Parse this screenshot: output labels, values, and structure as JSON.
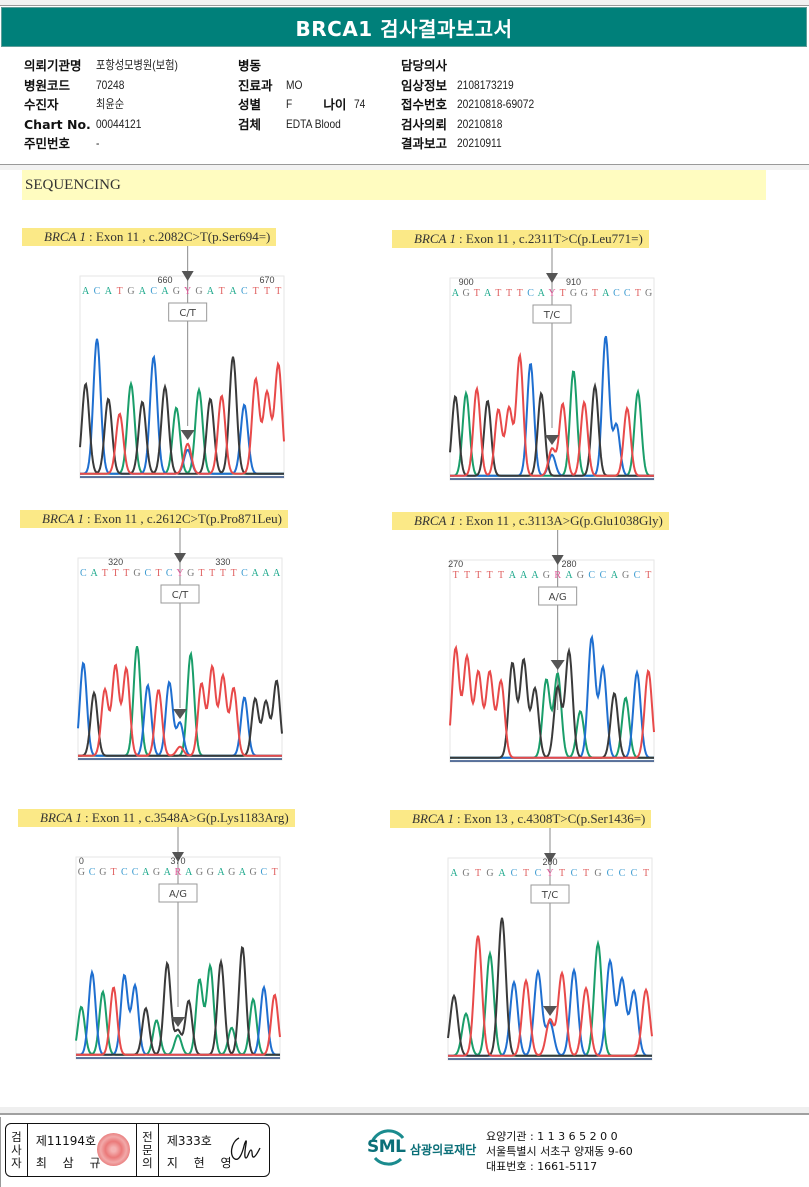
{
  "report": {
    "title": "BRCA1 검사결과보고서",
    "section_title": "SEQUENCING"
  },
  "patient_info": {
    "col1": [
      {
        "label": "의뢰기관명",
        "value": "포항성모병원(보험)"
      },
      {
        "label": "병원코드",
        "value": "70248"
      },
      {
        "label": "수진자",
        "value": "최윤순"
      },
      {
        "label": "Chart No.",
        "value": "00044121"
      },
      {
        "label": "주민번호",
        "value": "-"
      }
    ],
    "col2": [
      {
        "label": "병동",
        "value": ""
      },
      {
        "label": "진료과",
        "value": "MO"
      },
      {
        "label": "성별",
        "value": "F",
        "extra_label": "나이",
        "extra_value": "74"
      },
      {
        "label": "검체",
        "value": "EDTA Blood"
      }
    ],
    "col3": [
      {
        "label": "담당의사",
        "value": ""
      },
      {
        "label": "임상정보",
        "value": "2108173219"
      },
      {
        "label": "접수번호",
        "value": "20210818-69072"
      },
      {
        "label": "검사의뢰",
        "value": "20210818"
      },
      {
        "label": "결과보고",
        "value": "20210911"
      }
    ]
  },
  "variants": [
    {
      "gene": "BRCA 1",
      "desc": ": Exon 11 , c.2082C>T(p.Ser694=)",
      "call": "C/T",
      "pos_labels": [
        {
          "text": "660",
          "index": 7
        },
        {
          "text": "670",
          "index": 16
        }
      ],
      "sequence": "ACATGACAGYGATACTTT",
      "variant_index": 9,
      "peaks": [
        [
          "G",
          0.6
        ],
        [
          "C",
          0.9
        ],
        [
          "G",
          0.5
        ],
        [
          "T",
          0.4
        ],
        [
          "A",
          0.6
        ],
        [
          "G",
          0.48
        ],
        [
          "C",
          0.78
        ],
        [
          "G",
          0.58
        ],
        [
          "A",
          0.44
        ],
        [
          "T",
          0.2
        ],
        [
          "A",
          0.56
        ],
        [
          "G",
          0.5
        ],
        [
          "T",
          0.52
        ],
        [
          "G",
          0.78
        ],
        [
          "C",
          0.46
        ],
        [
          "T",
          0.63
        ],
        [
          "T",
          0.54
        ],
        [
          "T",
          0.73
        ]
      ],
      "minor": {
        "base": "C",
        "height": 0.16
      }
    },
    {
      "gene": "BRCA 1",
      "desc": ": Exon 11 , c.2311T>C(p.Leu771=)",
      "call": "T/C",
      "pos_labels": [
        {
          "text": "900",
          "index": 1
        },
        {
          "text": "910",
          "index": 11
        }
      ],
      "sequence": "AGTATTTCAYTGGTACCTG",
      "variant_index": 9,
      "peaks": [
        [
          "G",
          0.53
        ],
        [
          "A",
          0.55
        ],
        [
          "T",
          0.58
        ],
        [
          "G",
          0.5
        ],
        [
          "T",
          0.44
        ],
        [
          "T",
          0.45
        ],
        [
          "T",
          0.8
        ],
        [
          "C",
          0.75
        ],
        [
          "G",
          0.55
        ],
        [
          "T",
          0.18
        ],
        [
          "T",
          0.48
        ],
        [
          "A",
          0.7
        ],
        [
          "T",
          0.49
        ],
        [
          "G",
          0.6
        ],
        [
          "C",
          0.93
        ],
        [
          "C",
          0.34
        ],
        [
          "T",
          0.45
        ],
        [
          "A",
          0.56
        ]
      ],
      "minor": {
        "base": "C",
        "height": 0.14
      }
    },
    {
      "gene": "BRCA 1",
      "desc": ": Exon 11 , c.2612C>T(p.Pro871Leu)",
      "call": "C/T",
      "pos_labels": [
        {
          "text": "320",
          "index": 3
        },
        {
          "text": "330",
          "index": 13
        }
      ],
      "sequence": "CATTTGCTCYGTTTTCAAA",
      "variant_index": 9,
      "peaks": [
        [
          "C",
          0.62
        ],
        [
          "G",
          0.42
        ],
        [
          "T",
          0.44
        ],
        [
          "T",
          0.6
        ],
        [
          "T",
          0.58
        ],
        [
          "A",
          0.73
        ],
        [
          "C",
          0.47
        ],
        [
          "T",
          0.44
        ],
        [
          "C",
          0.49
        ],
        [
          "C",
          0.22
        ],
        [
          "A",
          0.68
        ],
        [
          "T",
          0.48
        ],
        [
          "T",
          0.59
        ],
        [
          "T",
          0.53
        ],
        [
          "T",
          0.45
        ],
        [
          "C",
          0.39
        ],
        [
          "G",
          0.38
        ],
        [
          "G",
          0.36
        ],
        [
          "G",
          0.5
        ]
      ],
      "minor": {
        "base": "T",
        "height": 0.06
      }
    },
    {
      "gene": "BRCA 1",
      "desc": ": Exon 11 , c.3113A>G(p.Glu1038Gly)",
      "call": "A/G",
      "pos_labels": [
        {
          "text": "270",
          "index": 0
        },
        {
          "text": "280",
          "index": 10
        }
      ],
      "sequence": "TTTTTAAAGRAGCCAGCT",
      "variant_index": 9,
      "peaks": [
        [
          "T",
          0.73
        ],
        [
          "T",
          0.67
        ],
        [
          "T",
          0.57
        ],
        [
          "T",
          0.57
        ],
        [
          "T",
          0.51
        ],
        [
          "G",
          0.63
        ],
        [
          "G",
          0.65
        ],
        [
          "G",
          0.46
        ],
        [
          "A",
          0.52
        ],
        [
          "A",
          0.56
        ],
        [
          "G",
          0.71
        ],
        [
          "A",
          0.31
        ],
        [
          "C",
          0.8
        ],
        [
          "C",
          0.6
        ],
        [
          "G",
          0.43
        ],
        [
          "A",
          0.4
        ],
        [
          "C",
          0.57
        ],
        [
          "T",
          0.58
        ]
      ],
      "minor": {
        "base": "G",
        "height": 0.47
      }
    },
    {
      "gene": "BRCA 1",
      "desc": ": Exon 11 , c.3548A>G(p.Lys1183Arg)",
      "call": "A/G",
      "pos_labels": [
        {
          "text": "0",
          "index": 0
        },
        {
          "text": "370",
          "index": 9
        }
      ],
      "sequence": "GCGTCCAGARAGGAGAGCT",
      "variant_index": 9,
      "peaks": [
        [
          "A",
          0.32
        ],
        [
          "C",
          0.55
        ],
        [
          "A",
          0.42
        ],
        [
          "T",
          0.45
        ],
        [
          "C",
          0.53
        ],
        [
          "C",
          0.46
        ],
        [
          "G",
          0.31
        ],
        [
          "A",
          0.23
        ],
        [
          "G",
          0.61
        ],
        [
          "G",
          0.16
        ],
        [
          "G",
          0.36
        ],
        [
          "A",
          0.5
        ],
        [
          "A",
          0.59
        ],
        [
          "G",
          0.62
        ],
        [
          "A",
          0.18
        ],
        [
          "G",
          0.72
        ],
        [
          "A",
          0.37
        ],
        [
          "C",
          0.45
        ],
        [
          "T",
          0.4
        ]
      ],
      "minor": {
        "base": "A",
        "height": 0.13
      }
    },
    {
      "gene": "BRCA 1",
      "desc": ": Exon 13 , c.4308T>C(p.Ser1436=)",
      "call": "T/C",
      "pos_labels": [
        {
          "text": "200",
          "index": 8
        }
      ],
      "sequence": "AGTGACTCYTCTGCCCT",
      "variant_index": 8,
      "peaks": [
        [
          "G",
          0.4
        ],
        [
          "A",
          0.28
        ],
        [
          "T",
          0.8
        ],
        [
          "A",
          0.68
        ],
        [
          "G",
          0.92
        ],
        [
          "C",
          0.49
        ],
        [
          "T",
          0.5
        ],
        [
          "C",
          0.56
        ],
        [
          "C",
          0.22
        ],
        [
          "T",
          0.55
        ],
        [
          "C",
          0.57
        ],
        [
          "T",
          0.45
        ],
        [
          "A",
          0.75
        ],
        [
          "C",
          0.63
        ],
        [
          "C",
          0.51
        ],
        [
          "C",
          0.43
        ],
        [
          "T",
          0.44
        ]
      ],
      "minor": {
        "base": "T",
        "height": 0.24
      }
    }
  ],
  "base_colors": {
    "A": "#1a9e6a",
    "C": "#1f6fd0",
    "G": "#3a3a3a",
    "T": "#e84a4a",
    "Y": "#e05a9a",
    "R": "#e05a9a"
  },
  "seq_text_colors": {
    "A": "#19a78a",
    "C": "#3a9ad0",
    "G": "#777777",
    "T": "#e06060",
    "Y": "#e05a9a",
    "R": "#e05a9a"
  },
  "footer": {
    "examiner_label": "검사자",
    "examiner_no": "제11194호",
    "examiner_name": "최 삼 규",
    "specialist_label": "전문의",
    "specialist_no": "제333호",
    "specialist_name": "지 현 영",
    "org_logo_text": "SML",
    "org_name": "삼광의료재단",
    "org_code": "요양기관 : 1 1 3 6 5 2 0 0",
    "org_address": "서울특별시 서초구 양재동 9-60",
    "org_phone": "대표번호 : 1661-5117"
  }
}
